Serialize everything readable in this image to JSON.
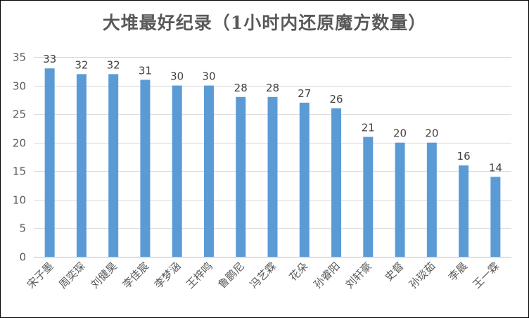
{
  "chart_data": {
    "type": "bar",
    "title": "大堆最好纪录（1小时内还原魔方数量）",
    "xlabel": "",
    "ylabel": "",
    "ylim": [
      0,
      35
    ],
    "yticks": [
      0,
      5,
      10,
      15,
      20,
      25,
      30,
      35
    ],
    "grid": true,
    "legend": "none",
    "bar_color": "#5B9BD5",
    "categories": [
      "宋子墨",
      "周奕琛",
      "刘健昊",
      "李佳宸",
      "李梦涵",
      "王梓鸣",
      "鲁鹏尼",
      "冯艺霖",
      "花朵",
      "孙睿阳",
      "刘轩豪",
      "史督",
      "孙琰茹",
      "李晨",
      "王一霖"
    ],
    "values": [
      33,
      32,
      32,
      31,
      30,
      30,
      28,
      28,
      27,
      26,
      21,
      20,
      20,
      16,
      14
    ]
  }
}
